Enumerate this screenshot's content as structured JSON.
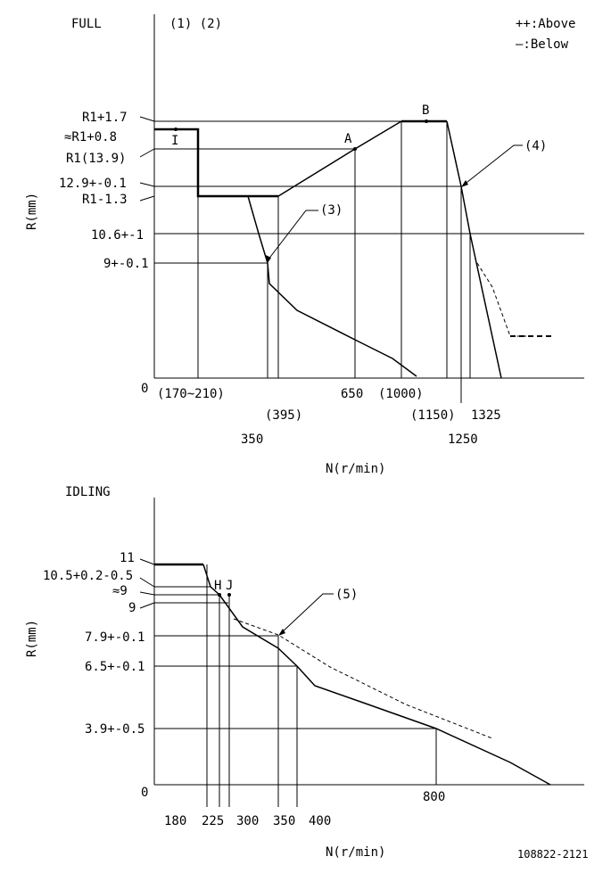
{
  "full": {
    "title": "FULL",
    "notes": "(1) (2)",
    "legend_above": "++:Above",
    "legend_below": "—:Below",
    "axis_r": "R(mm)",
    "axis_n": "N(r/min)",
    "origin": "0",
    "y_labels": {
      "r1_17": "R1+1.7",
      "r1_08": "≈R1+0.8",
      "r1_139": "R1(13.9)",
      "v129": "12.9+-0.1",
      "r1_m13": "R1-1.3",
      "v106": "10.6+-1",
      "v9": "9+-0.1"
    },
    "x_labels": {
      "x170": "(170~210)",
      "x350": "350",
      "x395": "(395)",
      "x650": "650",
      "x1000": "(1000)",
      "x1150": "(1150)",
      "x1250": "1250",
      "x1325": "1325"
    },
    "points": {
      "I": "I",
      "A": "A",
      "B": "B"
    },
    "callouts": {
      "c3": "(3)",
      "c4": "(4)"
    }
  },
  "idling": {
    "title": "IDLING",
    "axis_r": "R(mm)",
    "axis_n": "N(r/min)",
    "origin": "0",
    "y_labels": {
      "v11": "11",
      "v105": "10.5+0.2-0.5",
      "v9a": "≈9",
      "v9": "9",
      "v79": "7.9+-0.1",
      "v65": "6.5+-0.1",
      "v39": "3.9+-0.5"
    },
    "x_labels": {
      "x180": "180",
      "x225": "225",
      "x300": "300",
      "x350": "350",
      "x400": "400",
      "x800": "800"
    },
    "points": {
      "H": "H",
      "J": "J"
    },
    "callouts": {
      "c5": "(5)"
    }
  },
  "footer_code": "108822-2121"
}
